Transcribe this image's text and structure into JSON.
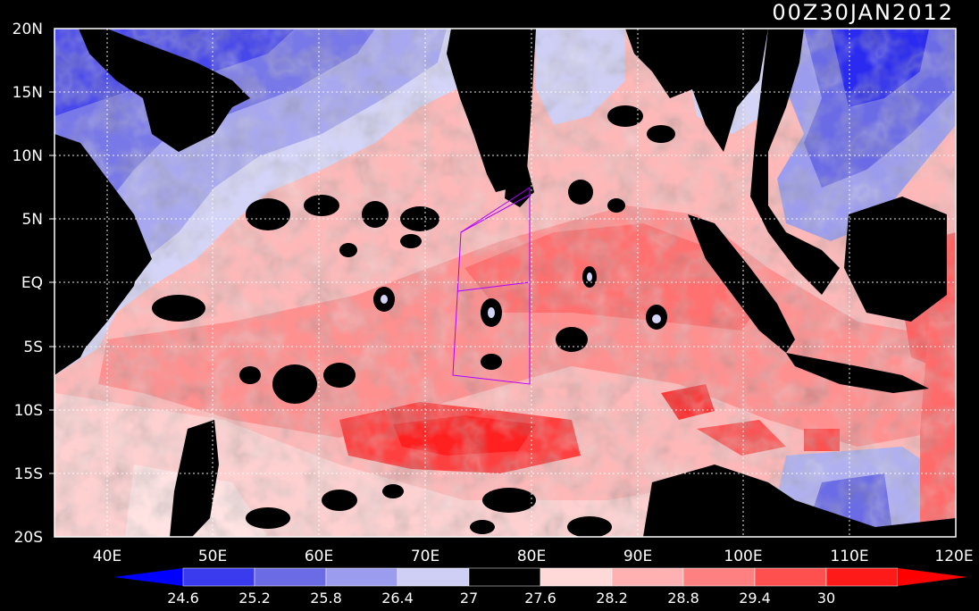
{
  "timestamp": "00Z30JAN2012",
  "colors": {
    "background": "#000000",
    "land": "#000000",
    "frame": "#ffffff",
    "grid": "#ffffff",
    "box_outline": "#b000ff",
    "coast_outline": "#8000ff"
  },
  "axes": {
    "lat_labels": [
      "20N",
      "15N",
      "10N",
      "5N",
      "EQ",
      "5S",
      "10S",
      "15S",
      "20S"
    ],
    "lon_labels": [
      "40E",
      "50E",
      "60E",
      "70E",
      "80E",
      "90E",
      "100E",
      "110E",
      "120E"
    ]
  },
  "colorbar": {
    "tick_labels": [
      "24.6",
      "25.2",
      "25.8",
      "26.4",
      "27",
      "27.6",
      "28.2",
      "28.8",
      "29.4",
      "30"
    ],
    "segment_colors": [
      "#0000ff",
      "#3a3aee",
      "#6b6be6",
      "#9c9cee",
      "#cfcff6",
      "#000000",
      "#ffd8d8",
      "#ffb0b0",
      "#ff8080",
      "#ff5050",
      "#ff1a1a",
      "#ff0000"
    ]
  }
}
